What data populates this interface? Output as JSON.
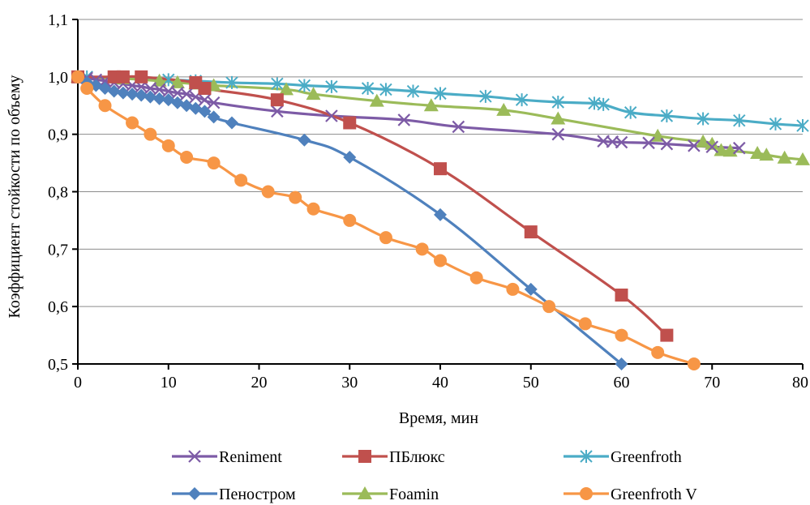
{
  "chart_data": {
    "type": "line",
    "xlabel": "Время, мин",
    "ylabel": "Коэффициент стойкости по объему",
    "xlim": [
      0,
      80
    ],
    "ylim": [
      0.5,
      1.1
    ],
    "xticks": [
      0,
      10,
      20,
      30,
      40,
      50,
      60,
      70,
      80
    ],
    "yticks": [
      0.5,
      0.6,
      0.7,
      0.8,
      0.9,
      1.0,
      1.1
    ],
    "xtick_labels": [
      "0",
      "10",
      "20",
      "30",
      "40",
      "50",
      "60",
      "70",
      "80"
    ],
    "ytick_labels": [
      "0,5",
      "0,6",
      "0,7",
      "0,8",
      "0,9",
      "1,0",
      "1,1"
    ],
    "grid": "horizontal",
    "legend_position": "bottom",
    "series": [
      {
        "name": "Reniment",
        "color": "#7d5ba6",
        "marker": "x",
        "x": [
          0,
          1,
          2,
          3,
          4,
          5,
          6,
          7,
          8,
          9,
          10,
          11,
          12,
          13,
          14,
          15,
          22,
          28,
          36,
          42,
          53,
          58,
          59,
          60,
          63,
          65,
          68,
          70,
          73
        ],
        "y": [
          1.0,
          0.998,
          0.995,
          0.993,
          0.99,
          0.988,
          0.985,
          0.983,
          0.98,
          0.978,
          0.975,
          0.972,
          0.97,
          0.965,
          0.96,
          0.955,
          0.94,
          0.932,
          0.925,
          0.913,
          0.9,
          0.888,
          0.887,
          0.886,
          0.885,
          0.883,
          0.88,
          0.878,
          0.876
        ]
      },
      {
        "name": "ПБлюкс",
        "color": "#c0504d",
        "marker": "square",
        "x": [
          0,
          4,
          5,
          7,
          13,
          14,
          22,
          30,
          40,
          50,
          60,
          65
        ],
        "y": [
          1.0,
          1.0,
          1.0,
          1.0,
          0.99,
          0.98,
          0.96,
          0.92,
          0.84,
          0.73,
          0.62,
          0.55
        ]
      },
      {
        "name": "Greenfroth",
        "color": "#4bacc6",
        "marker": "star",
        "x": [
          0,
          1,
          5,
          10,
          13,
          17,
          22,
          25,
          28,
          32,
          34,
          37,
          40,
          45,
          49,
          53,
          57,
          58,
          61,
          65,
          69,
          73,
          77,
          80
        ],
        "y": [
          1.0,
          1.0,
          0.998,
          0.995,
          0.993,
          0.99,
          0.988,
          0.985,
          0.983,
          0.98,
          0.978,
          0.975,
          0.971,
          0.966,
          0.96,
          0.956,
          0.954,
          0.952,
          0.938,
          0.932,
          0.927,
          0.924,
          0.918,
          0.915
        ]
      },
      {
        "name": "Пеностром",
        "color": "#4f81bd",
        "marker": "diamond",
        "x": [
          0,
          1,
          2,
          3,
          4,
          5,
          6,
          7,
          8,
          9,
          10,
          11,
          12,
          13,
          14,
          15,
          17,
          25,
          30,
          40,
          50,
          60
        ],
        "y": [
          1.0,
          0.99,
          0.985,
          0.98,
          0.975,
          0.972,
          0.97,
          0.968,
          0.965,
          0.962,
          0.96,
          0.955,
          0.95,
          0.945,
          0.94,
          0.93,
          0.92,
          0.89,
          0.86,
          0.76,
          0.63,
          0.5
        ]
      },
      {
        "name": "Foamin",
        "color": "#9bbb59",
        "marker": "triangle",
        "x": [
          0,
          5,
          9,
          11,
          13,
          15,
          23,
          26,
          33,
          39,
          47,
          53,
          64,
          69,
          70,
          71,
          72,
          75,
          76,
          78,
          80
        ],
        "y": [
          1.0,
          0.997,
          0.993,
          0.99,
          0.988,
          0.985,
          0.978,
          0.97,
          0.958,
          0.95,
          0.942,
          0.927,
          0.897,
          0.887,
          0.883,
          0.872,
          0.871,
          0.867,
          0.864,
          0.859,
          0.856
        ]
      },
      {
        "name": "Greenfroth V",
        "color": "#f79646",
        "marker": "circle",
        "x": [
          0,
          1,
          3,
          6,
          8,
          10,
          12,
          15,
          18,
          21,
          24,
          26,
          30,
          34,
          38,
          40,
          44,
          48,
          52,
          56,
          60,
          64,
          68
        ],
        "y": [
          1.0,
          0.98,
          0.95,
          0.92,
          0.9,
          0.88,
          0.86,
          0.85,
          0.82,
          0.8,
          0.79,
          0.77,
          0.75,
          0.72,
          0.7,
          0.68,
          0.65,
          0.63,
          0.6,
          0.57,
          0.55,
          0.52,
          0.5
        ]
      }
    ]
  }
}
